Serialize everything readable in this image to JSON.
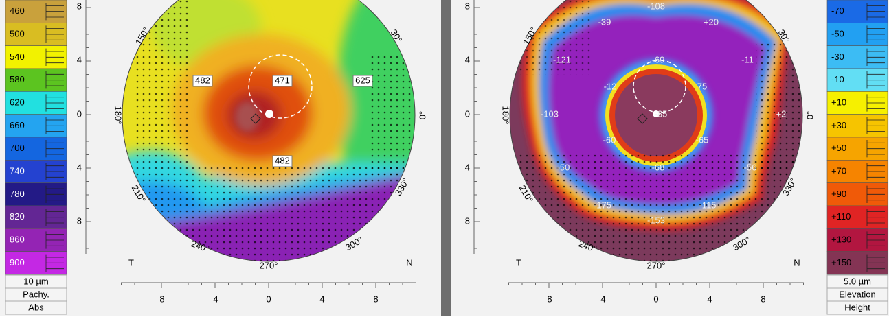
{
  "left_scale": {
    "items": [
      {
        "label": "460",
        "color": "#c9a13c"
      },
      {
        "label": "500",
        "color": "#d9bd22"
      },
      {
        "label": "540",
        "color": "#f2f200"
      },
      {
        "label": "580",
        "color": "#5cc420"
      },
      {
        "label": "620",
        "color": "#22e0e0"
      },
      {
        "label": "660",
        "color": "#24a4f0"
      },
      {
        "label": "700",
        "color": "#1466e0"
      },
      {
        "label": "740",
        "color": "#2442d0"
      },
      {
        "label": "780",
        "color": "#231a86"
      },
      {
        "label": "820",
        "color": "#632694"
      },
      {
        "label": "860",
        "color": "#9424b4"
      },
      {
        "label": "900",
        "color": "#c428e4"
      }
    ],
    "step": "10 µm",
    "mode": "Pachy.",
    "kind": "Abs"
  },
  "left_map": {
    "y_ticks": [
      "8",
      "4",
      "0",
      "4",
      "8"
    ],
    "x_ticks": [
      "8",
      "4",
      "0",
      "4",
      "8"
    ],
    "angles": [
      "150°",
      "180°",
      "210°",
      "240°",
      "270°",
      "300°",
      "330°",
      "30°",
      "0°"
    ],
    "values": [
      "482",
      "471",
      "625",
      "482"
    ],
    "side_left": "T",
    "side_right": "N"
  },
  "right_map": {
    "y_ticks": [
      "8",
      "4",
      "0",
      "4",
      "8"
    ],
    "x_ticks": [
      "8",
      "4",
      "0",
      "4",
      "8"
    ],
    "angles": [
      "150°",
      "180°",
      "210°",
      "240°",
      "270°",
      "300°",
      "330°",
      "30°",
      "0°"
    ],
    "values": [
      "-108",
      "-39",
      "+20",
      "-121",
      "-69",
      "-11",
      "-12",
      "75",
      "-103",
      "-85",
      "+2",
      "-60",
      "-65",
      "-50",
      "-68",
      "-56",
      "-175",
      "-115",
      "-153"
    ],
    "side_left": "T",
    "side_right": "N"
  },
  "right_scale": {
    "items": [
      {
        "label": "-70",
        "color": "#1a6ae6"
      },
      {
        "label": "-50",
        "color": "#22a0f2"
      },
      {
        "label": "-30",
        "color": "#3cbcf4"
      },
      {
        "label": "-10",
        "color": "#62def4"
      },
      {
        "label": "+10",
        "color": "#f6f000"
      },
      {
        "label": "+30",
        "color": "#f6c400"
      },
      {
        "label": "+50",
        "color": "#f6a400"
      },
      {
        "label": "+70",
        "color": "#f68400"
      },
      {
        "label": "+90",
        "color": "#f05a08"
      },
      {
        "label": "+110",
        "color": "#e02424"
      },
      {
        "label": "+130",
        "color": "#b21640"
      },
      {
        "label": "+150",
        "color": "#843454"
      }
    ],
    "step": "5.0 µm",
    "mode": "Elevation",
    "kind": "Height"
  }
}
